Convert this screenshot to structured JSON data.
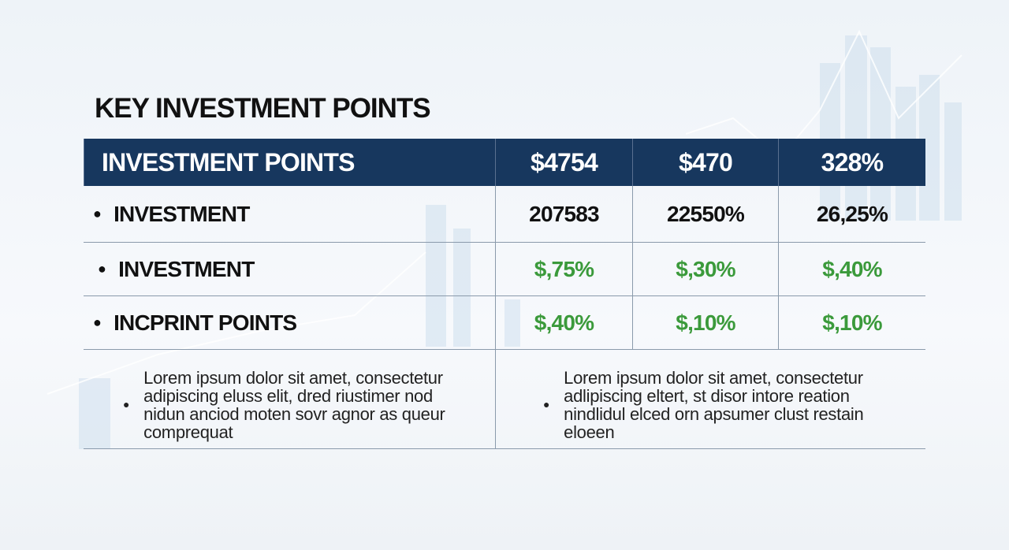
{
  "title": "KEY INVESTMENT POINTS",
  "table": {
    "header": [
      "INVESTMENT POINTS",
      "$4754",
      "$470",
      "328%"
    ],
    "rows": [
      [
        "INVESTMENT",
        "207583",
        "22550%",
        "26,25%"
      ],
      [
        "INVESTMENT",
        "$,75%",
        "$,30%",
        "$,40%"
      ],
      [
        "INCPRINT POINTS",
        "$,40%",
        "$,10%",
        "$,10%"
      ]
    ],
    "notes": [
      [
        "Lorem ipsum dolor sit amet, consectetur",
        "adipiscing eluss elit, dred riustimer nod",
        "nidun anciod moten sovr agnor as queur",
        "comprequat"
      ],
      [
        "Lorem ipsum dolor sit amet, consectetur",
        "adlipiscing eltert, st disor intore reation",
        "nindlidul elced orn apsumer clust restain",
        "eloeen"
      ]
    ]
  }
}
